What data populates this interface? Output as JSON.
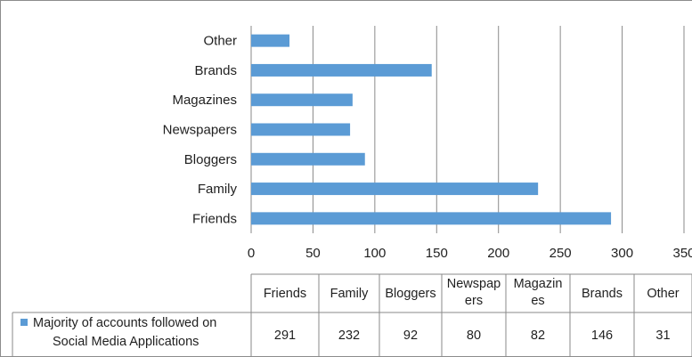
{
  "chart_data": {
    "type": "bar",
    "orientation": "horizontal",
    "categories": [
      "Friends",
      "Family",
      "Bloggers",
      "Newspapers",
      "Magazines",
      "Brands",
      "Other"
    ],
    "series": [
      {
        "name": "Majority of accounts followed on Social Media Applications",
        "values": [
          291,
          232,
          92,
          80,
          82,
          146,
          31
        ],
        "color": "#5b9bd5"
      }
    ],
    "xlim": [
      0,
      350
    ],
    "x_ticks": [
      "0",
      "50",
      "100",
      "150",
      "200",
      "250",
      "300",
      "350"
    ],
    "grid": true,
    "table": {
      "headers": [
        "Friends",
        "Family",
        "Bloggers",
        "Newspap ers",
        "Magazin es",
        "Brands",
        "Other"
      ],
      "legend_label_lines": [
        "Majority of accounts followed on",
        "Social Media Applications"
      ],
      "values": [
        "291",
        "232",
        "92",
        "80",
        "82",
        "146",
        "31"
      ]
    }
  }
}
